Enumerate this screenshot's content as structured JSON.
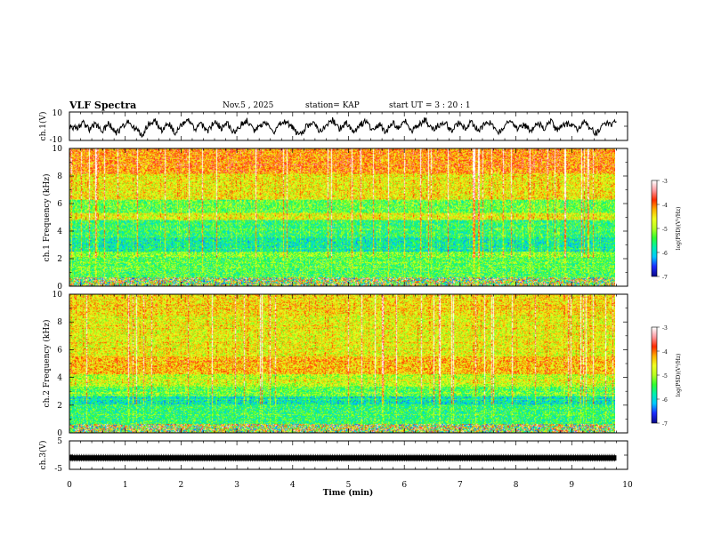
{
  "header": {
    "title": "VLF Spectra",
    "date": "Nov.5  , 2025",
    "station": "station= KAP",
    "start_ut": "start  UT =   3  : 20 : 1"
  },
  "chart_data": [
    {
      "type": "line",
      "panel": "ch1-waveform",
      "ylabel": "ch.1(V)",
      "ylim": [
        -10,
        10
      ],
      "yticks": [
        10,
        -10
      ],
      "xlim": [
        0,
        10
      ],
      "data_end_min": 9.8,
      "series": [
        {
          "values": [
            0.2,
            -1.5,
            2.8,
            -2.2,
            1.5,
            -3.5,
            2.0,
            -4.8,
            -1.0,
            3.2,
            -2.0,
            -6.0,
            1.2,
            3.5,
            -3.0,
            2.5,
            -4.5,
            0.5,
            4.0,
            -2.5,
            1.8,
            -3.8,
            3.0,
            -1.2,
            2.2,
            -5.0,
            1.0,
            3.8,
            -2.8,
            0.8,
            2.5,
            -4.0,
            1.5,
            3.0,
            -2.0,
            -6.5,
            0.5,
            2.8,
            -3.2,
            1.2,
            4.2,
            -1.8,
            2.0,
            -3.5,
            0.8,
            3.5,
            -2.5,
            1.6,
            -4.2,
            2.4,
            -1.0,
            3.2,
            -3.0,
            1.4,
            4.5,
            -2.2,
            0.6,
            2.6,
            -3.6,
            1.8,
            -1.4,
            3.4,
            -2.8,
            1.0,
            2.2,
            -4.6,
            0.4,
            3.6,
            -2.4,
            1.2,
            -3.4,
            2.8,
            -1.6,
            4.0,
            -3.2,
            0.8,
            2.0,
            -2.6,
            3.0,
            -1.2,
            -5.5,
            2.4,
            1.0,
            3.8
          ]
        }
      ]
    },
    {
      "type": "heatmap",
      "panel": "ch1-spectrogram",
      "ylabel": "ch.1 Frequency  (kHz)",
      "ylim": [
        0,
        10
      ],
      "yticks": [
        "0",
        "2",
        "4",
        "6",
        "8",
        "10"
      ],
      "xlim": [
        0,
        10
      ],
      "data_end_min": 9.8,
      "colorbar": {
        "label": "log(PSD)(V²/Hz)",
        "range": [
          -7,
          -3
        ],
        "ticks": [
          "-3",
          "-4",
          "-5",
          "-6",
          "-7"
        ]
      }
    },
    {
      "type": "heatmap",
      "panel": "ch2-spectrogram",
      "ylabel": "ch.2 Frequency  (kHz)",
      "ylim": [
        0,
        10
      ],
      "yticks": [
        "0",
        "2",
        "4",
        "6",
        "8",
        "10"
      ],
      "xlim": [
        0,
        10
      ],
      "data_end_min": 9.8,
      "colorbar": {
        "label": "log(PSD)(V²/Hz)",
        "range": [
          -7,
          -3
        ],
        "ticks": [
          "-3",
          "-4",
          "-5",
          "-6",
          "-7"
        ]
      }
    },
    {
      "type": "line",
      "panel": "ch3-waveform",
      "ylabel": "ch.3(V)",
      "ylim": [
        -5,
        5
      ],
      "yticks": [
        "5",
        "-5"
      ],
      "xlim": [
        0,
        10
      ],
      "data_end_min": 9.8,
      "series": [
        {
          "values": [
            -1.0,
            -1.0
          ]
        }
      ]
    }
  ],
  "x_axis": {
    "label": "Time  (min)",
    "ticks": [
      "0",
      "1",
      "2",
      "3",
      "4",
      "5",
      "6",
      "7",
      "8",
      "9",
      "10"
    ]
  },
  "colors": {
    "waveform": "#000000",
    "colormap": [
      "#0b0b8c",
      "#1d2cff",
      "#00c8ff",
      "#00f0b0",
      "#30ff30",
      "#b8ff20",
      "#f0ff20",
      "#ffb000",
      "#ff2a00",
      "#ff9aa0",
      "#ffffff"
    ]
  }
}
